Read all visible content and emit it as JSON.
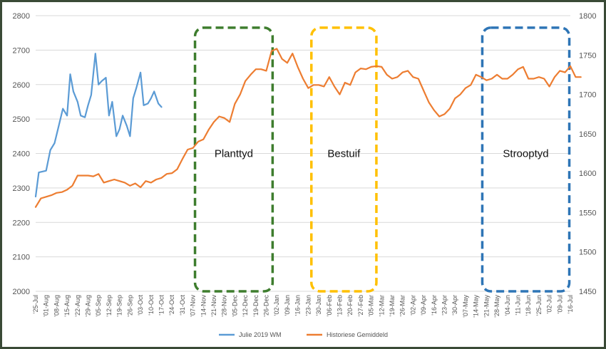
{
  "chart_data": {
    "type": "line",
    "title": "",
    "xlabel": "",
    "ylabel": "",
    "ylim": [
      2000,
      2800
    ],
    "y2lim": [
      1450,
      1800
    ],
    "yticks": [
      2000,
      2100,
      2200,
      2300,
      2400,
      2500,
      2600,
      2700,
      2800
    ],
    "y2ticks": [
      1450,
      1500,
      1550,
      1600,
      1650,
      1700,
      1750,
      1800
    ],
    "grid": true,
    "legend_position": "bottom",
    "x_ticks": [
      "'25-Jul",
      "'01-Aug",
      "'08-Aug",
      "'15-Aug",
      "'22-Aug",
      "'29-Aug",
      "'05-Sep",
      "'12-Sep",
      "'19-Sep",
      "'26-Sep",
      "'03-Oct",
      "'10-Oct",
      "'17-Oct",
      "'24-Oct",
      "'31-Oct",
      "'07-Nov",
      "'14-Nov",
      "'21-Nov",
      "'28-Nov",
      "'05-Dec",
      "'12-Dec",
      "'19-Dec",
      "'26-Dec",
      "'02-Jan",
      "'09-Jan",
      "'16-Jan",
      "'23-Jan",
      "'30-Jan",
      "'06-Feb",
      "'13-Feb",
      "'20-Feb",
      "'27-Feb",
      "'05-Mar",
      "'12-Mar",
      "'19-Mar",
      "'26-Mar",
      "'02-Apr",
      "'09-Apr",
      "'16-Apr",
      "'23-Apr",
      "'30-Apr",
      "'07-May",
      "'14-May",
      "'21-May",
      "'28-May",
      "'04-Jun",
      "'11-Jun",
      "'18-Jun",
      "'25-Jun",
      "'02-Jul",
      "'09-Jul",
      "'16-Jul"
    ],
    "series": [
      {
        "name": "Julie 2019 WM",
        "color": "#5b9bd5",
        "axis": "left",
        "x": [
          0,
          0.3,
          1,
          1.4,
          1.8,
          2.2,
          2.6,
          3,
          3.3,
          3.6,
          4,
          4.3,
          4.7,
          5,
          5.3,
          5.7,
          6,
          6.3,
          6.7,
          7,
          7.3,
          7.7,
          8,
          8.3,
          8.7,
          9,
          9.3,
          9.6,
          10,
          10.3,
          10.7,
          11,
          11.3,
          11.7,
          12
        ],
        "values": [
          2275,
          2345,
          2350,
          2410,
          2430,
          2480,
          2530,
          2510,
          2630,
          2580,
          2550,
          2510,
          2505,
          2540,
          2570,
          2690,
          2600,
          2610,
          2620,
          2510,
          2550,
          2450,
          2470,
          2510,
          2480,
          2450,
          2560,
          2590,
          2635,
          2540,
          2545,
          2560,
          2580,
          2545,
          2535
        ]
      },
      {
        "name": "Historiese Gemiddeld",
        "color": "#ed7d31",
        "axis": "right",
        "x": [
          0,
          0.5,
          1,
          1.5,
          2,
          2.5,
          3,
          3.5,
          4,
          4.5,
          5,
          5.5,
          6,
          6.5,
          7,
          7.5,
          8,
          8.5,
          9,
          9.5,
          10,
          10.5,
          11,
          11.5,
          12,
          12.5,
          13,
          13.5,
          14,
          14.5,
          15,
          15.5,
          16,
          16.5,
          17,
          17.5,
          18,
          18.5,
          19,
          19.5,
          20,
          20.5,
          21,
          21.5,
          22,
          22.5,
          23,
          23.5,
          24,
          24.5,
          25,
          25.5,
          26,
          26.5,
          27,
          27.5,
          28,
          28.5,
          29,
          29.5,
          30,
          30.5,
          31,
          31.5,
          32,
          32.5,
          33,
          33.5,
          34,
          34.5,
          35,
          35.5,
          36,
          36.5,
          37,
          37.5,
          38,
          38.5,
          39,
          39.5,
          40,
          40.5,
          41,
          41.5,
          42,
          42.5,
          43,
          43.5,
          44,
          44.5,
          45,
          45.5,
          46,
          46.5,
          47,
          47.5,
          48,
          48.5,
          49,
          49.5,
          50,
          50.5,
          51,
          51.5,
          52
        ],
        "values": [
          1557,
          1568,
          1570,
          1572,
          1575,
          1576,
          1579,
          1584,
          1597,
          1597,
          1597,
          1596,
          1599,
          1588,
          1590,
          1592,
          1590,
          1588,
          1584,
          1587,
          1582,
          1590,
          1588,
          1592,
          1594,
          1599,
          1600,
          1605,
          1618,
          1630,
          1632,
          1640,
          1643,
          1655,
          1665,
          1672,
          1670,
          1665,
          1688,
          1700,
          1717,
          1725,
          1732,
          1732,
          1730,
          1755,
          1758,
          1745,
          1740,
          1752,
          1735,
          1720,
          1708,
          1712,
          1712,
          1710,
          1722,
          1710,
          1700,
          1715,
          1712,
          1728,
          1733,
          1732,
          1735,
          1736,
          1735,
          1725,
          1720,
          1722,
          1728,
          1730,
          1722,
          1720,
          1705,
          1690,
          1680,
          1672,
          1675,
          1682,
          1695,
          1700,
          1708,
          1712,
          1725,
          1722,
          1718,
          1720,
          1725,
          1720,
          1720,
          1725,
          1732,
          1735,
          1720,
          1720,
          1722,
          1720,
          1710,
          1722,
          1730,
          1728,
          1736,
          1722,
          1722
        ]
      }
    ]
  },
  "annotations": [
    {
      "label": "Planttyd",
      "color": "#3e7d2e"
    },
    {
      "label": "Bestuif",
      "color": "#ffc000"
    },
    {
      "label": "Strooptyd",
      "color": "#2e75b6"
    }
  ]
}
